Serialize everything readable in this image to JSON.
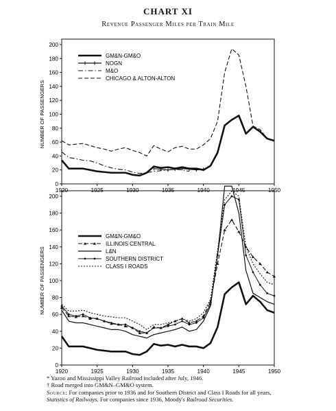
{
  "title": "CHART XI",
  "subtitle": "Revenue Passenger Miles per Train Mile",
  "footnotes": {
    "star": "* Yazoo and Mississippi Valley Railroad included after July, 1946.",
    "dagger": "† Road merged into GM&N–GM&O system.",
    "source_label": "Source:",
    "source_text": "For companies prior to 1936 and for Southern District and Class I Roads for all years,",
    "source_italic": "Statistics of Railways.",
    "source_text2": "For companies since 1936, Moody's",
    "source_italic2": "Railroad Securities."
  },
  "chart_data": [
    {
      "type": "line",
      "ylabel": "NUMBER OF PASSENGERS",
      "xlabel": "",
      "xlim": [
        1920,
        1950
      ],
      "ylim": [
        0,
        200
      ],
      "x_ticks": [
        1920,
        1925,
        1930,
        1935,
        1940,
        1945,
        1950
      ],
      "y_ticks": [
        0,
        20,
        40,
        60,
        80,
        100,
        120,
        140,
        160,
        180,
        200
      ],
      "legend_position": "top-left",
      "x": [
        1920,
        1921,
        1922,
        1923,
        1924,
        1925,
        1926,
        1927,
        1928,
        1929,
        1930,
        1931,
        1932,
        1933,
        1934,
        1935,
        1936,
        1937,
        1938,
        1939,
        1940,
        1941,
        1942,
        1943,
        1944,
        1945,
        1946,
        1947,
        1948,
        1949,
        1950
      ],
      "series": [
        {
          "name": "GM&N-GM&O",
          "style": "solid-thick",
          "values": [
            34,
            22,
            22,
            22,
            20,
            18,
            17,
            16,
            16,
            16,
            13,
            12,
            16,
            25,
            23,
            24,
            22,
            24,
            22,
            22,
            20,
            26,
            45,
            84,
            92,
            98,
            72,
            82,
            75,
            65,
            62
          ]
        },
        {
          "name": "NOGN",
          "style": "solid-ticks",
          "values": [
            null,
            null,
            null,
            null,
            null,
            null,
            null,
            null,
            null,
            null,
            null,
            null,
            null,
            22,
            21,
            20,
            21,
            22,
            21,
            20,
            21,
            null,
            null,
            null,
            null,
            null,
            null,
            null,
            null,
            null,
            null
          ]
        },
        {
          "name": "M&O",
          "style": "dash-dot",
          "values": [
            46,
            38,
            36,
            34,
            33,
            30,
            26,
            23,
            21,
            20,
            17,
            15,
            16,
            18,
            19,
            20,
            21,
            20,
            18,
            null,
            null,
            null,
            null,
            null,
            null,
            null,
            null,
            null,
            null,
            null,
            null
          ]
        },
        {
          "name": "CHICAGO & ALTON-ALTON",
          "style": "dashed",
          "values": [
            62,
            56,
            57,
            58,
            55,
            52,
            50,
            47,
            50,
            52,
            48,
            45,
            40,
            55,
            50,
            46,
            52,
            54,
            50,
            50,
            56,
            65,
            90,
            160,
            194,
            185,
            140,
            83,
            78,
            65,
            62
          ]
        }
      ]
    },
    {
      "type": "line",
      "ylabel": "NUMBER OF PASSENGERS",
      "xlabel": "",
      "xlim": [
        1920,
        1950
      ],
      "ylim": [
        0,
        200
      ],
      "x_ticks": [
        1920,
        1925,
        1930,
        1935,
        1940,
        1945,
        1950
      ],
      "y_ticks": [
        0,
        20,
        40,
        60,
        80,
        100,
        120,
        140,
        160,
        180,
        200
      ],
      "legend_position": "top-left",
      "x": [
        1920,
        1921,
        1922,
        1923,
        1924,
        1925,
        1926,
        1927,
        1928,
        1929,
        1930,
        1931,
        1932,
        1933,
        1934,
        1935,
        1936,
        1937,
        1938,
        1939,
        1940,
        1941,
        1942,
        1943,
        1944,
        1945,
        1946,
        1947,
        1948,
        1949,
        1950
      ],
      "series": [
        {
          "name": "GM&N-GM&O",
          "style": "solid-thick",
          "values": [
            34,
            22,
            22,
            22,
            20,
            18,
            17,
            16,
            16,
            16,
            13,
            12,
            16,
            25,
            23,
            24,
            22,
            24,
            22,
            22,
            20,
            26,
            45,
            84,
            92,
            98,
            72,
            82,
            75,
            65,
            62
          ]
        },
        {
          "name": "ILLINOIS CENTRAL",
          "style": "dash-triangle",
          "values": [
            68,
            58,
            57,
            58,
            55,
            55,
            52,
            49,
            48,
            46,
            44,
            38,
            38,
            45,
            44,
            48,
            52,
            55,
            50,
            52,
            58,
            75,
            120,
            160,
            172,
            158,
            140,
            128,
            120,
            110,
            105
          ]
        },
        {
          "name": "L&N",
          "style": "solid-thin",
          "values": [
            65,
            52,
            50,
            50,
            48,
            46,
            44,
            42,
            42,
            40,
            36,
            34,
            32,
            36,
            38,
            40,
            42,
            45,
            40,
            42,
            52,
            70,
            130,
            220,
            232,
            180,
            112,
            85,
            80,
            75,
            72
          ]
        },
        {
          "name": "SOUTHERN DISTRICT",
          "style": "solid-dots",
          "values": [
            70,
            60,
            58,
            60,
            56,
            55,
            52,
            50,
            48,
            48,
            44,
            40,
            38,
            44,
            44,
            46,
            48,
            52,
            48,
            50,
            56,
            72,
            130,
            190,
            200,
            196,
            130,
            110,
            95,
            85,
            82
          ]
        },
        {
          "name": "CLASS I ROADS",
          "style": "dotted",
          "values": [
            72,
            64,
            64,
            65,
            62,
            60,
            58,
            57,
            56,
            56,
            52,
            48,
            42,
            48,
            48,
            50,
            52,
            55,
            52,
            55,
            62,
            78,
            136,
            196,
            206,
            200,
            140,
            120,
            108,
            98,
            95
          ]
        }
      ]
    }
  ]
}
